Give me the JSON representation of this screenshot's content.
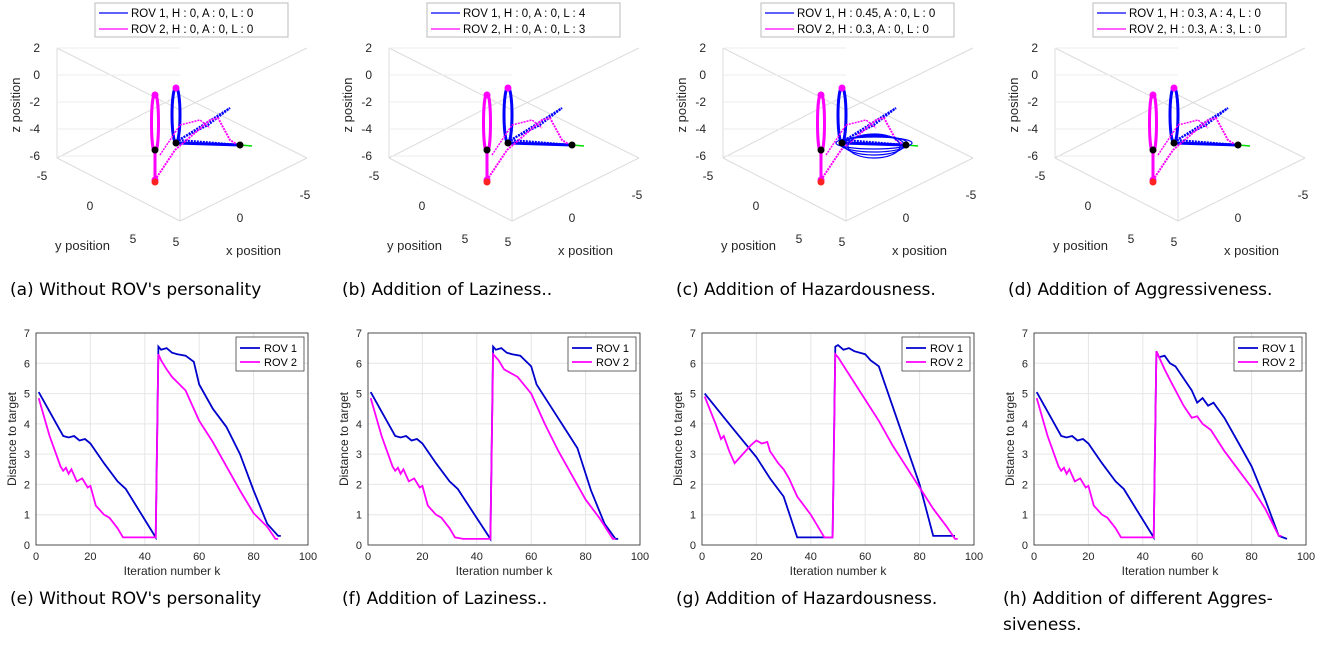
{
  "chart_data": [
    {
      "type": "line3d",
      "caption": "(a) Without ROV's personality",
      "legend": [
        "ROV 1, H : 0, A : 0, L : 0",
        "ROV 2, H : 0, A : 0, L : 0"
      ],
      "xlabel": "x position",
      "ylabel": "y position",
      "zlabel": "z position",
      "x_ticks": [
        "5",
        "0",
        "-5"
      ],
      "y_ticks": [
        "-5",
        "0",
        "5"
      ],
      "z_ticks": [
        "2",
        "0",
        "-2",
        "-4",
        "-6"
      ],
      "series": [
        {
          "name": "ROV 1",
          "color": "#0000ff",
          "points": [
            [
              0,
              -2,
              0
            ],
            [
              0,
              -2,
              -6
            ],
            [
              0,
              -2,
              -1
            ],
            [
              -4,
              0,
              -4
            ],
            [
              0,
              -2,
              -4
            ],
            [
              -5,
              -1,
              -5
            ],
            [
              0,
              -2,
              -5
            ],
            [
              -6,
              -1,
              -5
            ]
          ]
        },
        {
          "name": "ROV 2",
          "color": "#ff00ff",
          "points": [
            [
              2,
              2,
              -1
            ],
            [
              2,
              2,
              -6
            ],
            [
              2,
              2,
              -3
            ],
            [
              -5,
              -1,
              -5
            ],
            [
              0,
              0,
              -6
            ],
            [
              2,
              2,
              -6
            ]
          ]
        }
      ]
    },
    {
      "type": "line3d",
      "caption": "(b) Addition of Laziness..",
      "legend": [
        "ROV 1, H : 0, A : 0, L : 4",
        "ROV 2, H : 0, A : 0, L : 3"
      ],
      "xlabel": "x position",
      "ylabel": "y position",
      "zlabel": "z position",
      "x_ticks": [
        "5",
        "0",
        "-5"
      ],
      "y_ticks": [
        "-5",
        "0",
        "5"
      ],
      "z_ticks": [
        "2",
        "0",
        "-2",
        "-4",
        "-6"
      ],
      "series": [
        {
          "name": "ROV 1",
          "color": "#0000ff",
          "points": [
            [
              0,
              -2,
              0
            ],
            [
              0,
              -2,
              -6
            ],
            [
              0,
              -2,
              -1
            ],
            [
              -4,
              0,
              -4
            ],
            [
              0,
              -2,
              -4
            ],
            [
              -5,
              -1,
              -5
            ],
            [
              0,
              -2,
              -5
            ],
            [
              -6,
              -1,
              -5
            ]
          ]
        },
        {
          "name": "ROV 2",
          "color": "#ff00ff",
          "points": [
            [
              2,
              2,
              -1
            ],
            [
              2,
              2,
              -6
            ],
            [
              2,
              2,
              -3
            ],
            [
              -5,
              -1,
              -5
            ],
            [
              0,
              0,
              -6
            ],
            [
              2,
              2,
              -6
            ]
          ]
        }
      ]
    },
    {
      "type": "line3d",
      "caption": "(c) Addition of Hazardousness.",
      "legend": [
        "ROV 1, H : 0.45, A : 0, L : 0",
        "ROV 2, H : 0.3, A : 0, L : 0"
      ],
      "xlabel": "x position",
      "ylabel": "y position",
      "zlabel": "z position",
      "x_ticks": [
        "5",
        "0",
        "-5"
      ],
      "y_ticks": [
        "-5",
        "0",
        "5"
      ],
      "z_ticks": [
        "2",
        "0",
        "-2",
        "-4",
        "-6"
      ],
      "series": [
        {
          "name": "ROV 1",
          "color": "#0000ff",
          "points": [
            [
              0,
              -2,
              0
            ],
            [
              0,
              -2,
              -6
            ],
            [
              0,
              -2,
              -1
            ],
            [
              -4,
              0,
              -4
            ],
            [
              0,
              -2,
              -4
            ],
            [
              -5,
              -1,
              -5
            ],
            [
              0,
              -2,
              -5
            ],
            [
              -6,
              -1,
              -5
            ]
          ]
        },
        {
          "name": "ROV 2",
          "color": "#ff00ff",
          "points": [
            [
              2,
              2,
              -1
            ],
            [
              2,
              2,
              -6
            ],
            [
              2,
              2,
              -3
            ],
            [
              -5,
              -1,
              -5
            ],
            [
              0,
              0,
              -6
            ],
            [
              2,
              2,
              -6
            ]
          ]
        }
      ]
    },
    {
      "type": "line3d",
      "caption": "(d) Addition of Aggressiveness.",
      "legend": [
        "ROV 1, H : 0.3, A : 4, L : 0",
        "ROV 2, H : 0.3, A : 3, L : 0"
      ],
      "xlabel": "x position",
      "ylabel": "y position",
      "zlabel": "z position",
      "x_ticks": [
        "5",
        "0",
        "-5"
      ],
      "y_ticks": [
        "-5",
        "0",
        "5"
      ],
      "z_ticks": [
        "2",
        "0",
        "-2",
        "-4",
        "-6"
      ],
      "series": [
        {
          "name": "ROV 1",
          "color": "#0000ff",
          "points": [
            [
              0,
              -2,
              0
            ],
            [
              0,
              -2,
              -6
            ],
            [
              0,
              -2,
              -1
            ],
            [
              -4,
              0,
              -4
            ],
            [
              0,
              -2,
              -4
            ],
            [
              -5,
              -1,
              -5
            ],
            [
              0,
              -2,
              -5
            ],
            [
              -6,
              -1,
              -5
            ]
          ]
        },
        {
          "name": "ROV 2",
          "color": "#ff00ff",
          "points": [
            [
              2,
              2,
              -1
            ],
            [
              2,
              2,
              -6
            ],
            [
              2,
              2,
              -3
            ],
            [
              -5,
              -1,
              -5
            ],
            [
              0,
              0,
              -6
            ],
            [
              2,
              2,
              -6
            ]
          ]
        }
      ]
    },
    {
      "type": "line",
      "caption": "(e) Without ROV's personality",
      "xlabel": "Iteration number k",
      "ylabel": "Distance to target",
      "xlim": [
        0,
        100
      ],
      "ylim": [
        0,
        7
      ],
      "x_ticks": [
        0,
        20,
        40,
        60,
        80,
        100
      ],
      "y_ticks": [
        0,
        1,
        2,
        3,
        4,
        5,
        6,
        7
      ],
      "series": [
        {
          "name": "ROV 1",
          "color": "#0000cc",
          "x": [
            1,
            10,
            12,
            14,
            16,
            18,
            20,
            25,
            30,
            33,
            44,
            45,
            46,
            48,
            50,
            52,
            55,
            58,
            60,
            65,
            70,
            75,
            80,
            85,
            89,
            90
          ],
          "y": [
            5.05,
            3.6,
            3.55,
            3.6,
            3.45,
            3.5,
            3.35,
            2.7,
            2.1,
            1.85,
            0.25,
            6.55,
            6.45,
            6.5,
            6.35,
            6.3,
            6.25,
            6.05,
            5.3,
            4.5,
            3.9,
            3.0,
            1.8,
            0.7,
            0.3,
            0.3
          ]
        },
        {
          "name": "ROV 2",
          "color": "#ff00ff",
          "x": [
            1,
            5,
            9,
            10,
            11,
            12,
            13,
            15,
            17,
            19,
            20,
            22,
            25,
            27,
            30,
            32,
            33,
            44,
            45,
            46,
            48,
            50,
            55,
            60,
            65,
            70,
            75,
            80,
            85,
            88,
            89
          ],
          "y": [
            4.85,
            3.6,
            2.6,
            2.45,
            2.55,
            2.35,
            2.5,
            2.1,
            2.2,
            1.9,
            1.95,
            1.3,
            1.0,
            0.9,
            0.55,
            0.25,
            0.25,
            0.25,
            6.3,
            6.1,
            5.8,
            5.55,
            5.1,
            4.1,
            3.4,
            2.6,
            1.8,
            1.05,
            0.6,
            0.2,
            0.2
          ]
        }
      ]
    },
    {
      "type": "line",
      "caption": "(f) Addition of Laziness..",
      "xlabel": "Iteration number k",
      "ylabel": "Distance to target",
      "xlim": [
        0,
        100
      ],
      "ylim": [
        0,
        7
      ],
      "x_ticks": [
        0,
        20,
        40,
        60,
        80,
        100
      ],
      "y_ticks": [
        0,
        1,
        2,
        3,
        4,
        5,
        6,
        7
      ],
      "series": [
        {
          "name": "ROV 1",
          "color": "#0000cc",
          "x": [
            1,
            10,
            12,
            14,
            16,
            18,
            20,
            25,
            30,
            33,
            45,
            46,
            47,
            49,
            51,
            53,
            56,
            60,
            62,
            67,
            72,
            77,
            82,
            87,
            91,
            92
          ],
          "y": [
            5.05,
            3.6,
            3.55,
            3.6,
            3.45,
            3.5,
            3.35,
            2.7,
            2.1,
            1.85,
            0.2,
            6.55,
            6.45,
            6.5,
            6.35,
            6.3,
            6.25,
            5.9,
            5.3,
            4.6,
            3.9,
            3.2,
            1.8,
            0.7,
            0.2,
            0.2
          ]
        },
        {
          "name": "ROV 2",
          "color": "#ff00ff",
          "x": [
            1,
            5,
            9,
            10,
            11,
            12,
            13,
            15,
            17,
            19,
            20,
            22,
            25,
            27,
            30,
            32,
            35,
            45,
            46,
            48,
            50,
            55,
            60,
            65,
            70,
            75,
            80,
            85,
            90,
            91
          ],
          "y": [
            4.85,
            3.6,
            2.6,
            2.45,
            2.55,
            2.35,
            2.5,
            2.1,
            2.2,
            1.9,
            1.95,
            1.3,
            1.0,
            0.9,
            0.55,
            0.25,
            0.2,
            0.2,
            6.3,
            6.1,
            5.8,
            5.55,
            5.0,
            4.0,
            3.1,
            2.3,
            1.5,
            0.9,
            0.2,
            0.2
          ]
        }
      ]
    },
    {
      "type": "line",
      "caption": "(g) Addition of Hazardousness.",
      "xlabel": "Iteration number k",
      "ylabel": "Distance to target",
      "xlim": [
        0,
        100
      ],
      "ylim": [
        0,
        7
      ],
      "x_ticks": [
        0,
        20,
        40,
        60,
        80,
        100
      ],
      "y_ticks": [
        0,
        1,
        2,
        3,
        4,
        5,
        6,
        7
      ],
      "series": [
        {
          "name": "ROV 1",
          "color": "#0000cc",
          "x": [
            1,
            10,
            20,
            25,
            30,
            35,
            48,
            49,
            50,
            52,
            54,
            56,
            58,
            60,
            62,
            65,
            70,
            75,
            80,
            85,
            88,
            93
          ],
          "y": [
            5.0,
            4.0,
            2.9,
            2.2,
            1.6,
            0.25,
            0.25,
            6.55,
            6.6,
            6.45,
            6.5,
            6.4,
            6.35,
            6.3,
            6.1,
            5.9,
            4.6,
            3.3,
            2.0,
            0.3,
            0.3,
            0.3
          ]
        },
        {
          "name": "ROV 2",
          "color": "#ff00ff",
          "x": [
            1,
            5,
            7,
            8,
            10,
            12,
            15,
            18,
            20,
            22,
            24,
            25,
            28,
            30,
            32,
            35,
            40,
            45,
            46,
            48,
            49,
            50,
            55,
            60,
            65,
            70,
            75,
            80,
            85,
            90,
            93,
            94
          ],
          "y": [
            4.9,
            4.0,
            3.5,
            3.6,
            3.1,
            2.7,
            3.0,
            3.3,
            3.45,
            3.35,
            3.4,
            3.1,
            2.7,
            2.5,
            2.2,
            1.6,
            1.0,
            0.25,
            0.25,
            0.25,
            6.3,
            6.2,
            5.5,
            4.8,
            4.1,
            3.3,
            2.6,
            1.9,
            1.2,
            0.6,
            0.2,
            0.2
          ]
        }
      ]
    },
    {
      "type": "line",
      "caption": "(h) Addition of different Aggres-siveness.",
      "xlabel": "Iteration number k",
      "ylabel": "Distance to target",
      "xlim": [
        0,
        100
      ],
      "ylim": [
        0,
        7
      ],
      "x_ticks": [
        0,
        20,
        40,
        60,
        80,
        100
      ],
      "y_ticks": [
        0,
        1,
        2,
        3,
        4,
        5,
        6,
        7
      ],
      "series": [
        {
          "name": "ROV 1",
          "color": "#0000cc",
          "x": [
            1,
            10,
            12,
            14,
            16,
            18,
            20,
            25,
            30,
            33,
            44,
            45,
            46,
            48,
            50,
            52,
            55,
            58,
            60,
            62,
            64,
            66,
            70,
            75,
            80,
            85,
            90,
            93
          ],
          "y": [
            5.05,
            3.6,
            3.55,
            3.6,
            3.45,
            3.5,
            3.35,
            2.7,
            2.1,
            1.85,
            0.25,
            6.4,
            6.2,
            6.25,
            6.0,
            5.9,
            5.5,
            5.1,
            4.7,
            4.85,
            4.6,
            4.7,
            4.2,
            3.4,
            2.6,
            1.5,
            0.3,
            0.2
          ]
        },
        {
          "name": "ROV 2",
          "color": "#ff00ff",
          "x": [
            1,
            5,
            9,
            10,
            11,
            12,
            13,
            15,
            17,
            19,
            20,
            22,
            25,
            27,
            30,
            32,
            33,
            44,
            45,
            46,
            48,
            50,
            55,
            58,
            60,
            62,
            65,
            70,
            75,
            80,
            85,
            90,
            91
          ],
          "y": [
            4.85,
            3.6,
            2.6,
            2.45,
            2.55,
            2.35,
            2.5,
            2.1,
            2.2,
            1.9,
            1.95,
            1.3,
            1.0,
            0.9,
            0.55,
            0.25,
            0.25,
            0.25,
            6.4,
            6.2,
            5.8,
            5.45,
            4.6,
            4.2,
            4.25,
            4.0,
            3.8,
            3.1,
            2.5,
            1.9,
            1.2,
            0.3,
            0.3
          ]
        }
      ]
    }
  ],
  "legend_bottom": [
    "ROV 1",
    "ROV 2"
  ]
}
